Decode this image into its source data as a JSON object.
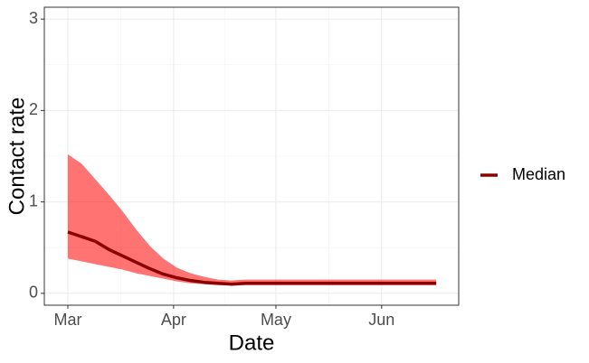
{
  "chart_data": {
    "type": "line",
    "x_label": "Date",
    "y_label": "Contact rate",
    "x": [
      0,
      4,
      8,
      12,
      16,
      20,
      24,
      28,
      32,
      36,
      40,
      44,
      48,
      52,
      56,
      60,
      64,
      68,
      72,
      76,
      80,
      84,
      88,
      92,
      96,
      100,
      104,
      108
    ],
    "series": [
      {
        "name": "Median",
        "color": "#8b0000",
        "values": [
          0.67,
          0.62,
          0.57,
          0.48,
          0.41,
          0.34,
          0.27,
          0.21,
          0.17,
          0.14,
          0.12,
          0.11,
          0.1,
          0.11,
          0.11,
          0.11,
          0.11,
          0.11,
          0.11,
          0.11,
          0.11,
          0.11,
          0.11,
          0.11,
          0.11,
          0.11,
          0.11,
          0.11
        ]
      }
    ],
    "band": {
      "color": "#ff0000",
      "opacity": 0.55,
      "lower": [
        0.38,
        0.35,
        0.32,
        0.29,
        0.26,
        0.22,
        0.19,
        0.16,
        0.13,
        0.11,
        0.1,
        0.09,
        0.09,
        0.09,
        0.09,
        0.09,
        0.09,
        0.09,
        0.09,
        0.09,
        0.09,
        0.09,
        0.09,
        0.09,
        0.09,
        0.09,
        0.09,
        0.09
      ],
      "upper": [
        1.52,
        1.42,
        1.25,
        1.08,
        0.9,
        0.7,
        0.52,
        0.38,
        0.28,
        0.22,
        0.18,
        0.15,
        0.14,
        0.15,
        0.15,
        0.15,
        0.15,
        0.15,
        0.15,
        0.15,
        0.15,
        0.15,
        0.15,
        0.15,
        0.15,
        0.15,
        0.15,
        0.15
      ]
    },
    "xlim": [
      -6.9,
      114.6
    ],
    "xticks": [
      {
        "value": 0,
        "label": "Mar"
      },
      {
        "value": 31,
        "label": "Apr"
      },
      {
        "value": 61,
        "label": "May"
      },
      {
        "value": 92,
        "label": "Jun"
      }
    ],
    "ylim": [
      -0.13,
      3.13
    ],
    "yticks": [
      0,
      1,
      2,
      3
    ],
    "grid": true
  }
}
